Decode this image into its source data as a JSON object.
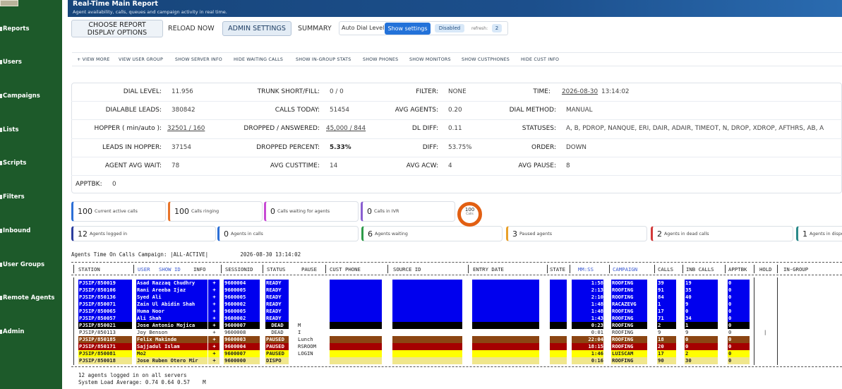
{
  "sidebar": {
    "items": [
      {
        "label": "Reports",
        "icon": "chart-icon"
      },
      {
        "label": "Users",
        "icon": "users-icon"
      },
      {
        "label": "Campaigns",
        "icon": "campaign-icon"
      },
      {
        "label": "Lists",
        "icon": "list-icon"
      },
      {
        "label": "Scripts",
        "icon": "script-icon"
      },
      {
        "label": "Filters",
        "icon": "filter-icon"
      },
      {
        "label": "Inbound",
        "icon": "inbound-icon"
      },
      {
        "label": "User Groups",
        "icon": "user-group-icon"
      },
      {
        "label": "Remote Agents",
        "icon": "remote-agent-icon"
      },
      {
        "label": "Admin",
        "icon": "admin-icon"
      }
    ]
  },
  "header": {
    "title": "Real-Time Main Report",
    "subtitle": "Agent availability, calls, queues and campaign activity in real time."
  },
  "toolbar": {
    "choose_report_line1": "CHOOSE REPORT",
    "choose_report_line2": "DISPLAY OPTIONS",
    "reload_now": "RELOAD NOW",
    "admin_settings": "ADMIN SETTINGS",
    "summary": "SUMMARY",
    "auto_dial_label": "Auto Dial Level",
    "show_settings": "Show settings",
    "disabled_badge": "Disabled",
    "refresh_label": "refresh:",
    "refresh_value": "2"
  },
  "links": [
    "+ VIEW MORE",
    "VIEW USER GROUP",
    "SHOW SERVER INFO",
    "HIDE WAITING CALLS",
    "SHOW IN-GROUP STATS",
    "SHOW PHONES",
    "SHOW MONITORS",
    "SHOW CUSTPHONES",
    "HIDE CUST INFO"
  ],
  "stats": {
    "dial_level": {
      "label": "DIAL LEVEL:",
      "value": "11.956"
    },
    "trunk": {
      "label": "TRUNK SHORT/FILL:",
      "value": "0 / 0"
    },
    "filter": {
      "label": "FILTER:",
      "value": "NONE"
    },
    "time": {
      "label": "TIME:",
      "date": "2026-08-30",
      "clock": "13:14:02"
    },
    "dialable": {
      "label": "DIALABLE LEADS:",
      "value": "380842"
    },
    "calls_today": {
      "label": "CALLS TODAY:",
      "value": "51454"
    },
    "avg_agents": {
      "label": "AVG AGENTS:",
      "value": "0.20"
    },
    "dial_method": {
      "label": "DIAL METHOD:",
      "value": "MANUAL"
    },
    "hopper": {
      "label": "HOPPER ( min/auto ):",
      "value": "32501 / 160"
    },
    "dropped_answered": {
      "label": "DROPPED / ANSWERED:",
      "value": "45,000 / 844"
    },
    "dl_diff": {
      "label": "DL DIFF:",
      "value": "0.11"
    },
    "statuses": {
      "label": "STATUSES:",
      "value": "A, B, PDROP, NANQUE, ERI, DAIR, ADAIR, TIMEOT, N, DROP, XDROP, AFTHRS, AB, A"
    },
    "leads_hopper": {
      "label": "LEADS IN HOPPER:",
      "value": "37154"
    },
    "dropped_pct": {
      "label": "DROPPED PERCENT:",
      "value": "5.33%"
    },
    "diff": {
      "label": "DIFF:",
      "value": "53.75%"
    },
    "order": {
      "label": "ORDER:",
      "value": "DOWN"
    },
    "agent_avg_wait": {
      "label": "AGENT AVG WAIT:",
      "value": "78"
    },
    "avg_custtime": {
      "label": "AVG CUSTTIME:",
      "value": "14"
    },
    "avg_acw": {
      "label": "AVG ACW:",
      "value": "4"
    },
    "avg_pause": {
      "label": "AVG PAUSE:",
      "value": "8"
    },
    "apptbk": {
      "label": "APPTBK:",
      "value": "0"
    }
  },
  "calls_cards": [
    {
      "num": "100",
      "label": "Current active calls",
      "color": "#2c6fd6"
    },
    {
      "num": "100",
      "label": "Calls ringing",
      "color": "#e8742a"
    },
    {
      "num": "0",
      "label": "Calls waiting for agents",
      "color": "#c74bd4"
    },
    {
      "num": "0",
      "label": "Calls in IVR",
      "color": "#8a5fd1"
    }
  ],
  "calls_circle": {
    "num": "100",
    "label": "Calls"
  },
  "agent_cards": [
    {
      "num": "12",
      "label": "Agents logged in",
      "color": "#2c3e9e"
    },
    {
      "num": "0",
      "label": "Agents in calls",
      "color": "#2c6fd6"
    },
    {
      "num": "6",
      "label": "Agents waiting",
      "color": "#2e9b4a"
    },
    {
      "num": "3",
      "label": "Paused agents",
      "color": "#e8a02a"
    },
    {
      "num": "2",
      "label": "Agents in dead calls",
      "color": "#d33a3a"
    },
    {
      "num": "1",
      "label": "Agents in dispo",
      "color": "#2a8a8a"
    }
  ],
  "agents_table": {
    "caption": "Agents Time On Calls Campaign: |ALL-ACTIVE|          2026-08-30 13:14:02",
    "headers": {
      "station": "STATION",
      "user": "USER",
      "show_id": "SHOW ID",
      "info": "INFO",
      "sessionid": "SESSIONID",
      "status": "STATUS",
      "pause": "PAUSE",
      "cust_phone": "CUST PHONE",
      "source_id": "SOURCE ID",
      "entry_date": "ENTRY DATE",
      "state": "STATE",
      "mmss": "MM:SS",
      "campaign": "CAMPAIGN",
      "calls": "CALLS",
      "inb_calls": "INB CALLS",
      "apptbk": "APPTBK",
      "hold": "HOLD",
      "in_group": "IN-GROUP"
    },
    "rows": [
      {
        "station": "PJSIP/850019",
        "user": "Asad Razzaq Chudhry",
        "info": "+",
        "session": "9600004",
        "status": "READY",
        "pause": "",
        "mmss": "1:58",
        "campaign": "ROOFING",
        "calls": "39",
        "inb": "19",
        "appt": "0",
        "bg": "#0000ee",
        "fg": "#ffffff"
      },
      {
        "station": "PJSIP/850106",
        "user": "Rani Areeba Ijaz",
        "info": "+",
        "session": "9600005",
        "status": "READY",
        "pause": "",
        "mmss": "2:13",
        "campaign": "ROOFING",
        "calls": "91",
        "inb": "35",
        "appt": "0",
        "bg": "#0000ee",
        "fg": "#ffffff"
      },
      {
        "station": "PJSIP/850136",
        "user": "Syed Ali",
        "info": "+",
        "session": "9600005",
        "status": "READY",
        "pause": "",
        "mmss": "2:10",
        "campaign": "ROOFING",
        "calls": "84",
        "inb": "40",
        "appt": "0",
        "bg": "#0000ee",
        "fg": "#ffffff"
      },
      {
        "station": "PJSIP/850071",
        "user": "Zain Ul Abidin Shah",
        "info": "+",
        "session": "9600002",
        "status": "READY",
        "pause": "",
        "mmss": "1:48",
        "campaign": "RACAZEVG",
        "calls": "1",
        "inb": "9",
        "appt": "0",
        "bg": "#0000ee",
        "fg": "#ffffff"
      },
      {
        "station": "PJSIP/850065",
        "user": "Huma Noor",
        "info": "+",
        "session": "9600005",
        "status": "READY",
        "pause": "",
        "mmss": "1:48",
        "campaign": "ROOFING",
        "calls": "17",
        "inb": "0",
        "appt": "0",
        "bg": "#0000ee",
        "fg": "#ffffff"
      },
      {
        "station": "PJSIP/850057",
        "user": "Ali Shah",
        "info": "+",
        "session": "9600002",
        "status": "READY",
        "pause": "",
        "mmss": "1:43",
        "campaign": "ROOFING",
        "calls": "71",
        "inb": "34",
        "appt": "0",
        "bg": "#0000ee",
        "fg": "#ffffff"
      },
      {
        "station": "PJSIP/850021",
        "user": "Jose Antonio Mojica",
        "info": "+",
        "session": "9600007",
        "status": "DEAD",
        "pause": "M",
        "mmss": "0:23",
        "campaign": "ROOFING",
        "calls": "2",
        "inb": "1",
        "appt": "0",
        "bg": "#000000",
        "fg": "#ffffff"
      },
      {
        "station": "PJSIP/850113",
        "user": "Joy Benson",
        "info": "+",
        "session": "9600008",
        "status": "DEAD",
        "pause": "I",
        "mmss": "0:01",
        "campaign": "ROOFING",
        "calls": "9",
        "inb": "9",
        "appt": "0",
        "bg": "#ffffff",
        "fg": "#222222"
      },
      {
        "station": "PJSIP/850185",
        "user": "Felix Makinde",
        "info": "+",
        "session": "9600003",
        "status": "PAUSED",
        "pause": "Lunch",
        "mmss": "22:04",
        "campaign": "ROOFING",
        "calls": "18",
        "inb": "0",
        "appt": "0",
        "bg": "#8b4513",
        "fg": "#ffffff"
      },
      {
        "station": "PJSIP/850171",
        "user": "Sajjadul Islam",
        "info": "+",
        "session": "9600004",
        "status": "PAUSED",
        "pause": "RSROOM",
        "mmss": "18:15",
        "campaign": "ROOFING",
        "calls": "20",
        "inb": "0",
        "appt": "0",
        "bg": "#a50000",
        "fg": "#ffffff"
      },
      {
        "station": "PJSIP/850081",
        "user": "Mo2",
        "info": "+",
        "session": "9600007",
        "status": "PAUSED",
        "pause": "LOGIN",
        "mmss": "1:46",
        "campaign": "LUISCAM",
        "calls": "17",
        "inb": "2",
        "appt": "0",
        "bg": "#ffff00",
        "fg": "#222222"
      },
      {
        "station": "PJSIP/850018",
        "user": "Jose Ruben Otero Mir",
        "info": "+",
        "session": "9600000",
        "status": "DISPO",
        "pause": "",
        "mmss": "0:16",
        "campaign": "ROOFING",
        "calls": "90",
        "inb": "30",
        "appt": "0",
        "bg": "#f0e68c",
        "fg": "#222222"
      }
    ]
  },
  "footer": {
    "line1": "12 agents logged in on all servers",
    "line2": "System Load Average: 0.74 0.64 0.57    M"
  }
}
